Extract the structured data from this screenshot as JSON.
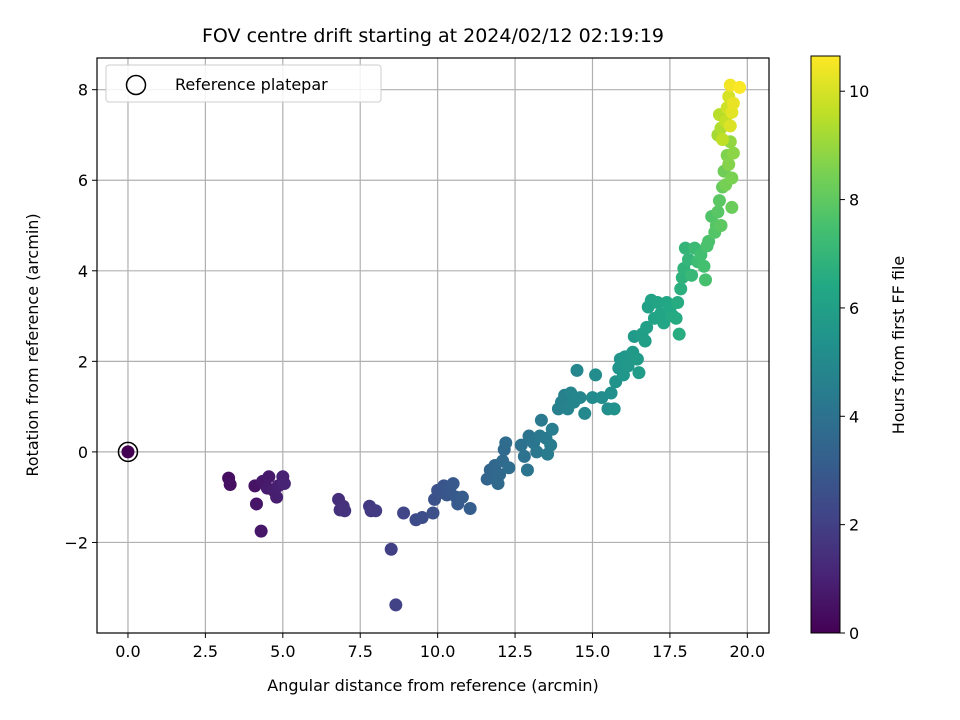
{
  "chart_data": {
    "type": "scatter",
    "title": "FOV centre drift starting at 2024/02/12 02:19:19",
    "xlabel": "Angular distance from reference (arcmin)",
    "ylabel": "Rotation from reference (arcmin)",
    "xlim": [
      -1.0,
      20.7
    ],
    "ylim": [
      -4.0,
      8.7
    ],
    "xticks": [
      0.0,
      2.5,
      5.0,
      7.5,
      10.0,
      12.5,
      15.0,
      17.5,
      20.0
    ],
    "xtick_labels": [
      "0.0",
      "2.5",
      "5.0",
      "7.5",
      "10.0",
      "12.5",
      "15.0",
      "17.5",
      "20.0"
    ],
    "yticks": [
      -2,
      0,
      2,
      4,
      6,
      8
    ],
    "ytick_labels": [
      "−2",
      "0",
      "2",
      "4",
      "6",
      "8"
    ],
    "grid": true,
    "legend": {
      "position": "top-left",
      "entries": [
        "Reference platepar"
      ]
    },
    "reference_point": {
      "x": 0.0,
      "y": 0.0
    },
    "colorbar": {
      "label": "Hours from first FF file",
      "min": 0,
      "max": 10.65,
      "ticks": [
        0,
        2,
        4,
        6,
        8,
        10
      ],
      "tick_labels": [
        "0",
        "2",
        "4",
        "6",
        "8",
        "10"
      ],
      "colormap": "viridis"
    },
    "points": [
      [
        0.0,
        0.0,
        0.0
      ],
      [
        3.25,
        -0.58,
        0.4
      ],
      [
        3.3,
        -0.72,
        0.45
      ],
      [
        4.1,
        -0.75,
        0.55
      ],
      [
        4.15,
        -1.15,
        0.6
      ],
      [
        4.3,
        -1.75,
        0.65
      ],
      [
        4.35,
        -0.65,
        0.7
      ],
      [
        4.55,
        -0.55,
        0.75
      ],
      [
        4.5,
        -0.8,
        0.8
      ],
      [
        4.7,
        -0.85,
        0.85
      ],
      [
        4.8,
        -1.0,
        0.9
      ],
      [
        4.85,
        -0.75,
        0.95
      ],
      [
        5.0,
        -0.55,
        1.0
      ],
      [
        5.05,
        -0.7,
        1.05
      ],
      [
        6.8,
        -1.05,
        1.4
      ],
      [
        6.85,
        -1.28,
        1.45
      ],
      [
        6.95,
        -1.2,
        1.5
      ],
      [
        7.0,
        -1.3,
        1.55
      ],
      [
        7.8,
        -1.2,
        1.75
      ],
      [
        7.85,
        -1.3,
        1.8
      ],
      [
        8.0,
        -1.3,
        1.85
      ],
      [
        8.5,
        -2.15,
        2.0
      ],
      [
        8.65,
        -3.38,
        2.05
      ],
      [
        8.9,
        -1.35,
        2.2
      ],
      [
        9.3,
        -1.5,
        2.4
      ],
      [
        9.5,
        -1.45,
        2.5
      ],
      [
        9.85,
        -1.35,
        2.6
      ],
      [
        9.9,
        -1.05,
        2.65
      ],
      [
        10.0,
        -0.85,
        2.7
      ],
      [
        10.1,
        -0.9,
        2.75
      ],
      [
        10.2,
        -0.75,
        2.8
      ],
      [
        10.3,
        -0.95,
        2.85
      ],
      [
        10.4,
        -0.8,
        2.9
      ],
      [
        10.5,
        -0.7,
        2.95
      ],
      [
        10.6,
        -1.0,
        3.0
      ],
      [
        10.65,
        -1.15,
        3.05
      ],
      [
        10.8,
        -1.0,
        3.1
      ],
      [
        11.05,
        -1.25,
        3.15
      ],
      [
        11.6,
        -0.6,
        3.4
      ],
      [
        11.7,
        -0.4,
        3.45
      ],
      [
        11.8,
        -0.55,
        3.5
      ],
      [
        11.85,
        -0.3,
        3.55
      ],
      [
        11.95,
        -0.7,
        3.6
      ],
      [
        12.0,
        -0.5,
        3.62
      ],
      [
        12.1,
        -0.2,
        3.65
      ],
      [
        12.15,
        0.05,
        3.7
      ],
      [
        12.2,
        0.2,
        3.75
      ],
      [
        12.3,
        -0.35,
        3.8
      ],
      [
        12.7,
        0.15,
        3.95
      ],
      [
        12.8,
        -0.1,
        4.0
      ],
      [
        12.9,
        -0.4,
        4.05
      ],
      [
        12.95,
        0.35,
        4.1
      ],
      [
        13.1,
        0.2,
        4.15
      ],
      [
        13.2,
        0.0,
        4.2
      ],
      [
        13.3,
        0.35,
        4.25
      ],
      [
        13.35,
        0.7,
        4.3
      ],
      [
        13.5,
        0.3,
        4.35
      ],
      [
        13.55,
        -0.05,
        4.4
      ],
      [
        13.65,
        0.15,
        4.45
      ],
      [
        13.7,
        0.5,
        4.5
      ],
      [
        13.9,
        0.95,
        4.55
      ],
      [
        14.0,
        1.1,
        4.6
      ],
      [
        14.1,
        1.25,
        4.65
      ],
      [
        14.2,
        0.95,
        4.7
      ],
      [
        14.3,
        1.3,
        4.75
      ],
      [
        14.4,
        1.1,
        4.8
      ],
      [
        14.5,
        1.8,
        4.85
      ],
      [
        14.6,
        1.2,
        4.9
      ],
      [
        14.75,
        0.85,
        4.95
      ],
      [
        15.0,
        1.2,
        5.05
      ],
      [
        15.1,
        1.7,
        5.1
      ],
      [
        15.3,
        1.2,
        5.15
      ],
      [
        15.5,
        0.95,
        5.25
      ],
      [
        15.6,
        1.3,
        5.3
      ],
      [
        15.7,
        0.95,
        5.35
      ],
      [
        15.75,
        1.55,
        5.4
      ],
      [
        15.85,
        1.85,
        5.45
      ],
      [
        15.9,
        2.05,
        5.5
      ],
      [
        16.0,
        1.7,
        5.55
      ],
      [
        16.05,
        2.1,
        5.6
      ],
      [
        16.15,
        1.9,
        5.65
      ],
      [
        16.3,
        2.2,
        5.7
      ],
      [
        16.35,
        2.55,
        5.75
      ],
      [
        16.45,
        2.05,
        5.8
      ],
      [
        16.5,
        1.75,
        5.85
      ],
      [
        16.6,
        2.6,
        5.9
      ],
      [
        16.7,
        2.45,
        5.95
      ],
      [
        16.75,
        2.75,
        6.0
      ],
      [
        16.8,
        3.2,
        6.05
      ],
      [
        16.9,
        3.35,
        6.1
      ],
      [
        17.0,
        2.95,
        6.15
      ],
      [
        17.1,
        3.3,
        6.2
      ],
      [
        17.2,
        3.05,
        6.25
      ],
      [
        17.3,
        2.85,
        6.3
      ],
      [
        17.4,
        3.3,
        6.35
      ],
      [
        17.5,
        3.15,
        6.4
      ],
      [
        17.6,
        3.0,
        6.45
      ],
      [
        17.7,
        2.95,
        6.5
      ],
      [
        17.75,
        3.3,
        6.55
      ],
      [
        17.8,
        2.6,
        6.6
      ],
      [
        17.85,
        3.6,
        6.7
      ],
      [
        17.9,
        3.85,
        6.8
      ],
      [
        17.95,
        4.05,
        6.85
      ],
      [
        18.0,
        4.5,
        6.95
      ],
      [
        18.1,
        4.25,
        7.0
      ],
      [
        18.2,
        3.9,
        7.1
      ],
      [
        18.3,
        4.5,
        7.2
      ],
      [
        18.4,
        4.2,
        7.3
      ],
      [
        18.5,
        4.35,
        7.4
      ],
      [
        18.6,
        4.1,
        7.45
      ],
      [
        18.65,
        3.8,
        7.5
      ],
      [
        18.7,
        4.55,
        7.55
      ],
      [
        18.75,
        4.65,
        7.6
      ],
      [
        18.85,
        5.2,
        7.7
      ],
      [
        18.95,
        4.85,
        7.75
      ],
      [
        19.0,
        5.0,
        7.8
      ],
      [
        19.05,
        5.3,
        7.85
      ],
      [
        19.1,
        5.55,
        7.9
      ],
      [
        19.15,
        5.0,
        7.95
      ],
      [
        19.2,
        5.85,
        8.1
      ],
      [
        19.25,
        6.2,
        8.3
      ],
      [
        19.3,
        5.9,
        8.4
      ],
      [
        19.35,
        6.55,
        8.6
      ],
      [
        19.4,
        6.35,
        8.7
      ],
      [
        19.45,
        6.85,
        8.9
      ],
      [
        19.5,
        5.4,
        8.2
      ],
      [
        19.5,
        6.05,
        8.5
      ],
      [
        19.55,
        6.6,
        8.8
      ],
      [
        19.05,
        7.0,
        9.2
      ],
      [
        19.15,
        7.15,
        9.35
      ],
      [
        19.1,
        7.45,
        9.5
      ],
      [
        19.2,
        6.9,
        9.6
      ],
      [
        19.3,
        7.3,
        9.7
      ],
      [
        19.35,
        7.6,
        9.85
      ],
      [
        19.4,
        7.85,
        10.0
      ],
      [
        19.45,
        7.2,
        10.1
      ],
      [
        19.5,
        7.5,
        10.2
      ],
      [
        19.55,
        7.7,
        10.3
      ],
      [
        19.45,
        8.1,
        10.45
      ],
      [
        19.75,
        8.05,
        10.6
      ]
    ]
  }
}
